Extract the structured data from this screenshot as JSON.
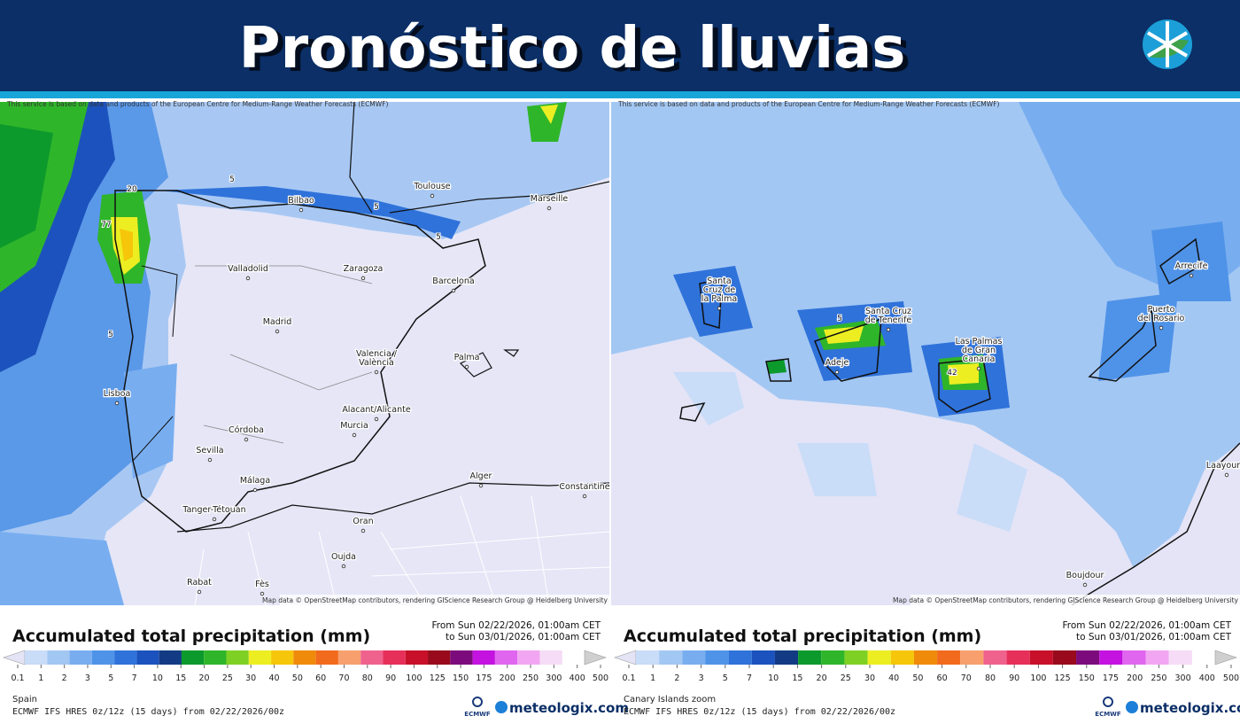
{
  "header": {
    "title": "Pronóstico de lluvias"
  },
  "legend": {
    "title": "Accumulated total precipitation (mm)",
    "thresholds": [
      0.1,
      1,
      2,
      3,
      5,
      7,
      10,
      15,
      20,
      25,
      30,
      40,
      50,
      60,
      70,
      80,
      90,
      100,
      125,
      150,
      175,
      200,
      250,
      300,
      400,
      500
    ],
    "colors": [
      "#e4e4f6",
      "#c9dcf8",
      "#a3c7f3",
      "#78aef0",
      "#4f93e8",
      "#2f72da",
      "#1c52bd",
      "#123b84",
      "#0d9a2c",
      "#2fb52a",
      "#7fd024",
      "#ecee22",
      "#f6c60a",
      "#f08a0a",
      "#f26a1c",
      "#f7a06e",
      "#f0628e",
      "#e6305a",
      "#c8102a",
      "#980a1c",
      "#7c0c7c",
      "#c412e0",
      "#e066f0",
      "#f2a6f2",
      "#f6dcf6",
      "#cfcfcf"
    ]
  },
  "panels": [
    {
      "notice": "This service is based on data and products of the European Centre for Medium-Range Weather Forecasts (ECMWF)",
      "map_credit": "Map data © OpenStreetMap contributors, rendering GIScience Research Group @ Heidelberg University",
      "period_from": "From Sun 02/22/2026, 01:00am CET",
      "period_to": "to Sun 03/01/2026, 01:00am CET",
      "region": "Spain",
      "model": "ECMWF IFS HRES 0z/12z (15 days) from 02/22/2026/00z",
      "ecmwf": "ECMWF",
      "brand": "meteologix.com",
      "places": [
        {
          "lines": [
            "Toulouse"
          ]
        },
        {
          "lines": [
            "Bilbao"
          ]
        },
        {
          "lines": [
            "Marseille"
          ]
        },
        {
          "lines": [
            "Valladolid"
          ]
        },
        {
          "lines": [
            "Zaragoza"
          ]
        },
        {
          "lines": [
            "Barcelona"
          ]
        },
        {
          "lines": [
            "Madrid"
          ]
        },
        {
          "lines": [
            "Valencia /",
            "València"
          ]
        },
        {
          "lines": [
            "Palma"
          ]
        },
        {
          "lines": [
            "Lisboa"
          ]
        },
        {
          "lines": [
            "Alacant/Alicante"
          ]
        },
        {
          "lines": [
            "Murcia"
          ]
        },
        {
          "lines": [
            "Córdoba"
          ]
        },
        {
          "lines": [
            "Sevilla"
          ]
        },
        {
          "lines": [
            "Málaga"
          ]
        },
        {
          "lines": [
            "Alger"
          ]
        },
        {
          "lines": [
            "Tanger-Tétouan"
          ]
        },
        {
          "lines": [
            "Oran"
          ]
        },
        {
          "lines": [
            "Constantine"
          ]
        },
        {
          "lines": [
            "Rabat"
          ]
        },
        {
          "lines": [
            "Oujda"
          ]
        },
        {
          "lines": [
            "Fès"
          ]
        }
      ],
      "contour_labels": [
        "20",
        "5",
        "5",
        "77",
        "5",
        "5"
      ]
    },
    {
      "notice": "This service is based on data and products of the European Centre for Medium-Range Weather Forecasts (ECMWF)",
      "map_credit": "Map data © OpenStreetMap contributors, rendering GIScience Research Group @ Heidelberg University",
      "period_from": "From Sun 02/22/2026, 01:00am CET",
      "period_to": "to Sun 03/01/2026, 01:00am CET",
      "region": "Canary Islands zoom",
      "model": "ECMWF IFS HRES 0z/12z (15 days) from 02/22/2026/00z",
      "ecmwf": "ECMWF",
      "brand": "meteologix.com",
      "places": [
        {
          "lines": [
            "Santa",
            "Cruz de",
            "la Palma"
          ]
        },
        {
          "lines": [
            "Santa Cruz",
            "de Tenerife"
          ]
        },
        {
          "lines": [
            "Adeje"
          ]
        },
        {
          "lines": [
            "Las Palmas",
            "de Gran",
            "Canaria"
          ]
        },
        {
          "lines": [
            "Arrecife"
          ]
        },
        {
          "lines": [
            "Puerto",
            "del Rosario"
          ]
        },
        {
          "lines": [
            "Laayoune"
          ]
        },
        {
          "lines": [
            "Boujdour"
          ]
        }
      ],
      "contour_labels": [
        "42",
        "5"
      ]
    }
  ]
}
